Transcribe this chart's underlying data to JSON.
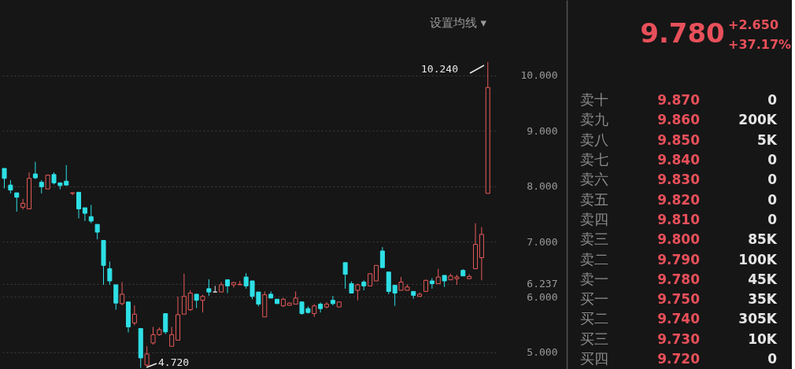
{
  "chart_data": [
    {
      "type": "candlestick",
      "categories": [
        null,
        null,
        null,
        null,
        null,
        null,
        null,
        null,
        null,
        null,
        null,
        null,
        null,
        null,
        null,
        null,
        null,
        null,
        null,
        null,
        null,
        null,
        null,
        null,
        null,
        null,
        null,
        null,
        null,
        null,
        null,
        null,
        null,
        null,
        null,
        null,
        null,
        null,
        null,
        null,
        null,
        null,
        null,
        null,
        null,
        null,
        null,
        null,
        null,
        null,
        null,
        null,
        null,
        null,
        null,
        null,
        null,
        null,
        null,
        null,
        null,
        null,
        null,
        null,
        null,
        null,
        null,
        null,
        null,
        null,
        null,
        null,
        null,
        null,
        null,
        null,
        null,
        null,
        null
      ],
      "ohlc": [
        [
          8.32,
          8.32,
          7.96,
          8.14
        ],
        [
          8.02,
          8.11,
          7.87,
          7.93
        ],
        [
          7.88,
          7.88,
          7.54,
          7.8
        ],
        [
          7.62,
          7.77,
          7.58,
          7.69
        ],
        [
          7.59,
          8.25,
          7.59,
          8.14
        ],
        [
          8.22,
          8.44,
          8.13,
          8.15
        ],
        [
          8.07,
          8.11,
          7.87,
          7.99
        ],
        [
          7.95,
          8.2,
          7.95,
          8.2
        ],
        [
          8.21,
          8.25,
          8.03,
          8.06
        ],
        [
          8.06,
          8.06,
          7.94,
          8.01
        ],
        [
          8.09,
          8.38,
          8.01,
          8.02
        ],
        [
          7.87,
          7.88,
          7.84,
          7.88
        ],
        [
          7.89,
          7.89,
          7.42,
          7.59
        ],
        [
          7.61,
          7.61,
          7.37,
          7.51
        ],
        [
          7.45,
          7.66,
          7.33,
          7.37
        ],
        [
          7.31,
          7.31,
          7.04,
          7.17
        ],
        [
          7.02,
          7.02,
          6.22,
          6.57
        ],
        [
          6.51,
          6.64,
          6.22,
          6.29
        ],
        [
          6.22,
          6.22,
          5.77,
          5.89
        ],
        [
          5.88,
          6.27,
          5.85,
          6.05
        ],
        [
          5.91,
          5.91,
          5.36,
          5.46
        ],
        [
          5.53,
          5.85,
          5.49,
          5.69
        ],
        [
          5.43,
          5.43,
          4.72,
          4.9
        ],
        [
          4.77,
          5.11,
          4.75,
          4.97
        ],
        [
          5.17,
          5.46,
          5.14,
          5.32
        ],
        [
          5.32,
          5.45,
          5.3,
          5.41
        ],
        [
          5.7,
          5.7,
          5.33,
          5.37
        ],
        [
          5.11,
          5.46,
          5.11,
          5.32
        ],
        [
          5.22,
          6.01,
          5.22,
          5.68
        ],
        [
          5.69,
          6.42,
          5.69,
          6.01
        ],
        [
          5.77,
          6.12,
          5.75,
          6.07
        ],
        [
          6.05,
          6.05,
          5.8,
          5.94
        ],
        [
          5.94,
          6.04,
          5.72,
          6.01
        ],
        [
          6.15,
          6.32,
          6.02,
          6.09
        ],
        [
          6.09,
          6.2,
          6.09,
          6.09
        ],
        [
          6.09,
          6.27,
          6.09,
          6.22
        ],
        [
          6.31,
          6.31,
          6.07,
          6.2
        ],
        [
          6.22,
          6.27,
          6.17,
          6.26
        ],
        [
          6.22,
          6.29,
          6.22,
          6.23
        ],
        [
          6.36,
          6.43,
          6.15,
          6.2
        ],
        [
          6.29,
          6.29,
          5.96,
          6.01
        ],
        [
          6.09,
          6.09,
          5.83,
          5.87
        ],
        [
          5.64,
          6.1,
          5.64,
          6.04
        ],
        [
          6.05,
          6.1,
          5.98,
          5.98
        ],
        [
          5.96,
          5.96,
          5.88,
          5.88
        ],
        [
          5.84,
          5.98,
          5.82,
          5.96
        ],
        [
          5.85,
          5.9,
          5.85,
          5.89
        ],
        [
          5.87,
          6.1,
          5.87,
          5.98
        ],
        [
          5.91,
          5.91,
          5.68,
          5.7
        ],
        [
          5.79,
          5.83,
          5.7,
          5.72
        ],
        [
          5.7,
          5.87,
          5.64,
          5.84
        ],
        [
          5.87,
          5.9,
          5.72,
          5.79
        ],
        [
          5.82,
          5.91,
          5.79,
          5.87
        ],
        [
          5.94,
          6.02,
          5.85,
          5.88
        ],
        [
          5.82,
          5.91,
          5.82,
          5.91
        ],
        [
          6.62,
          6.62,
          6.15,
          6.41
        ],
        [
          6.24,
          6.28,
          6.07,
          6.07
        ],
        [
          6.12,
          6.24,
          5.94,
          6.22
        ],
        [
          6.27,
          6.3,
          6.12,
          6.2
        ],
        [
          6.2,
          6.42,
          6.2,
          6.42
        ],
        [
          6.29,
          6.57,
          6.29,
          6.57
        ],
        [
          6.83,
          6.9,
          6.53,
          6.53
        ],
        [
          6.45,
          6.45,
          6.05,
          6.1
        ],
        [
          6.21,
          6.21,
          5.84,
          6.07
        ],
        [
          6.12,
          6.36,
          6.12,
          6.27
        ],
        [
          6.12,
          6.23,
          6.12,
          6.18
        ],
        [
          6.1,
          6.1,
          5.97,
          6.03
        ],
        [
          6.01,
          6.08,
          6.01,
          6.05
        ],
        [
          6.1,
          6.31,
          6.1,
          6.3
        ],
        [
          6.29,
          6.34,
          6.15,
          6.24
        ],
        [
          6.24,
          6.51,
          6.24,
          6.36
        ],
        [
          6.39,
          6.39,
          6.18,
          6.29
        ],
        [
          6.31,
          6.42,
          6.31,
          6.38
        ],
        [
          6.33,
          6.4,
          6.22,
          6.36
        ],
        [
          6.48,
          6.5,
          6.38,
          6.38
        ],
        [
          6.33,
          6.41,
          6.33,
          6.37
        ],
        [
          6.51,
          7.33,
          6.51,
          6.95
        ],
        [
          6.71,
          7.26,
          6.3,
          7.13
        ],
        [
          7.87,
          10.24,
          7.87,
          9.78
        ]
      ],
      "colors": [
        "#2ee0e6",
        "#2ee0e6",
        "#2ee0e6",
        "#e85a5a",
        "#e85a5a",
        "#2ee0e6",
        "#2ee0e6",
        "#e85a5a",
        "#2ee0e6",
        "#2ee0e6",
        "#2ee0e6",
        "#e85a5a",
        "#2ee0e6",
        "#2ee0e6",
        "#2ee0e6",
        "#2ee0e6",
        "#2ee0e6",
        "#2ee0e6",
        "#2ee0e6",
        "#e85a5a",
        "#2ee0e6",
        "#e85a5a",
        "#2ee0e6",
        "#e85a5a",
        "#e85a5a",
        "#e85a5a",
        "#2ee0e6",
        "#e85a5a",
        "#e85a5a",
        "#e85a5a",
        "#e85a5a",
        "#2ee0e6",
        "#e85a5a",
        "#2ee0e6",
        "#dddddd",
        "#e85a5a",
        "#2ee0e6",
        "#e85a5a",
        "#e85a5a",
        "#2ee0e6",
        "#2ee0e6",
        "#2ee0e6",
        "#e85a5a",
        "#2ee0e6",
        "#2ee0e6",
        "#e85a5a",
        "#e85a5a",
        "#e85a5a",
        "#2ee0e6",
        "#2ee0e6",
        "#e85a5a",
        "#2ee0e6",
        "#e85a5a",
        "#2ee0e6",
        "#e85a5a",
        "#2ee0e6",
        "#2ee0e6",
        "#e85a5a",
        "#2ee0e6",
        "#e85a5a",
        "#e85a5a",
        "#2ee0e6",
        "#2ee0e6",
        "#2ee0e6",
        "#e85a5a",
        "#e85a5a",
        "#2ee0e6",
        "#e85a5a",
        "#e85a5a",
        "#2ee0e6",
        "#e85a5a",
        "#2ee0e6",
        "#e85a5a",
        "#e85a5a",
        "#2ee0e6",
        "#e85a5a",
        "#e85a5a",
        "#e85a5a",
        "#e85a5a"
      ],
      "ylim": [
        4.7,
        11.36
      ],
      "yticks": [
        {
          "value": 5,
          "label": "5.000"
        },
        {
          "value": 6,
          "label": "6.000"
        },
        6.237,
        {
          "value": 7,
          "label": "7.000"
        },
        {
          "value": 8,
          "label": "8.000"
        },
        {
          "value": 9,
          "label": "9.000"
        },
        {
          "value": 10,
          "label": "10.000"
        }
      ],
      "grid": "y",
      "tick_labels": "y",
      "annotations": [
        "设置均线 ▾",
        "10.240",
        "4.720"
      ]
    },
    {
      "type": "other",
      "annotations": [
        "9.780",
        "+2.650",
        "+37.17%"
      ],
      "categories": [
        "卖十",
        "卖九",
        "卖八",
        "卖七",
        "卖六",
        "卖五",
        "卖四",
        "卖三",
        "卖二",
        "卖一",
        "买一",
        "买二",
        "买三",
        "买四"
      ],
      "series": [
        {
          "color": "#e8505a",
          "values": [
            9.87,
            9.86,
            9.85,
            9.84,
            9.83,
            9.82,
            9.81,
            9.8,
            9.79,
            9.78,
            9.75,
            9.74,
            9.73,
            9.72
          ],
          "value_labels": [
            "9.870",
            "9.860",
            "9.850",
            "9.840",
            "9.830",
            "9.820",
            "9.810",
            "9.800",
            "9.790",
            "9.780",
            "9.750",
            "9.740",
            "9.730",
            "9.720"
          ]
        },
        {
          "color": "#e6e6e6",
          "values": [
            0,
            200000,
            5000,
            0,
            0,
            0,
            0,
            85000,
            100000,
            45000,
            35000,
            305000,
            10000,
            0
          ],
          "value_labels": [
            "0",
            "200K",
            "5K",
            "0",
            "0",
            "0",
            "0",
            "85K",
            "100K",
            "45K",
            "35K",
            "305K",
            "10K",
            "0"
          ]
        }
      ]
    }
  ]
}
